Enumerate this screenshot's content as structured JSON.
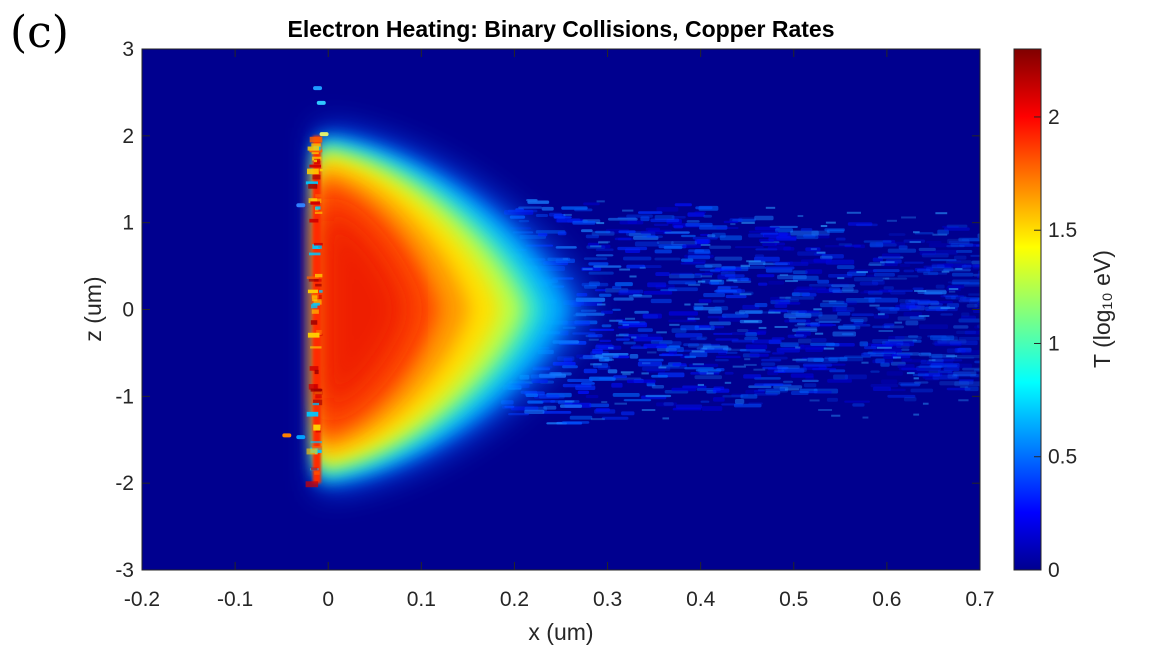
{
  "panel_label": "(c)",
  "chart_data": {
    "type": "heatmap",
    "title": "Electron Heating: Binary Collisions, Copper Rates",
    "xlabel": "x (um)",
    "ylabel": "z (um)",
    "xlim": [
      -0.2,
      0.7
    ],
    "ylim": [
      -3,
      3
    ],
    "x_ticks": [
      "-0.2",
      "-0.1",
      "0",
      "0.1",
      "0.2",
      "0.3",
      "0.4",
      "0.5",
      "0.6",
      "0.7"
    ],
    "y_ticks": [
      "-3",
      "-2",
      "-1",
      "0",
      "1",
      "2",
      "3"
    ],
    "colorbar": {
      "label": "T (log₁₀ eV)",
      "range": [
        0,
        2.3
      ],
      "ticks": [
        "0",
        "0.5",
        "1",
        "1.5",
        "2"
      ],
      "colormap": "jet"
    },
    "features": {
      "target_surface_x": -0.01,
      "hot_region_z_extent": [
        -2,
        2
      ],
      "peak_log10_T": 2.1,
      "plume_tip_x": 0.26,
      "noisy_tail_x_extent": [
        0.25,
        0.7
      ],
      "noisy_tail_z_extent": [
        -1.4,
        1.2
      ]
    },
    "grid": false,
    "colors": {
      "background": "#00008f",
      "hot": "#e81000"
    }
  }
}
